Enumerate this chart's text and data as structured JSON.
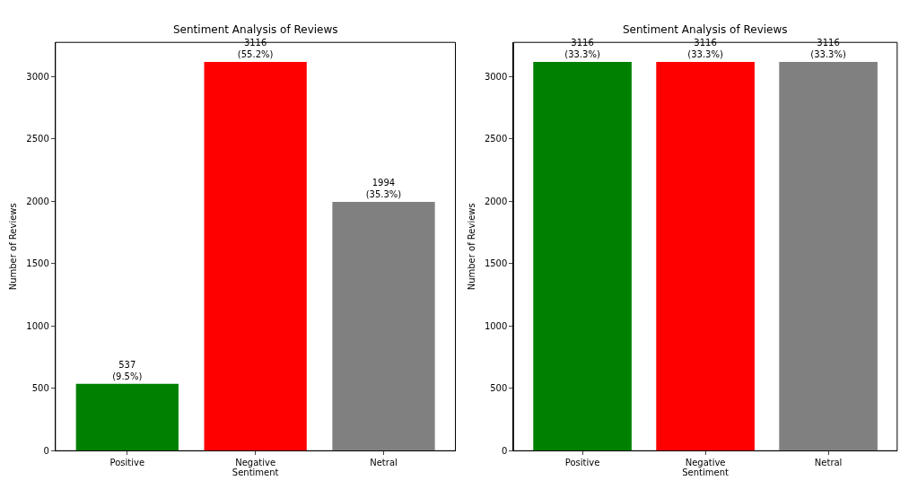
{
  "chart_data": [
    {
      "type": "bar",
      "title": "Sentiment Analysis of Reviews",
      "xlabel": "Sentiment",
      "ylabel": "Number of Reviews",
      "categories": [
        "Positive",
        "Negative",
        "Netral"
      ],
      "values": [
        537,
        3116,
        1994
      ],
      "colors": [
        "#008000",
        "#ff0000",
        "#808080"
      ],
      "value_labels": [
        "537\n(9.5%)",
        "3116\n(55.2%)",
        "1994\n(35.3%)"
      ],
      "ylim": [
        0,
        3272
      ],
      "yticks": [
        0,
        500,
        1000,
        1500,
        2000,
        2500,
        3000
      ]
    },
    {
      "type": "bar",
      "title": "Sentiment Analysis of Reviews",
      "xlabel": "Sentiment",
      "ylabel": "Number of Reviews",
      "categories": [
        "Positive",
        "Negative",
        "Netral"
      ],
      "values": [
        3116,
        3116,
        3116
      ],
      "colors": [
        "#008000",
        "#ff0000",
        "#808080"
      ],
      "value_labels": [
        "3116\n(33.3%)",
        "3116\n(33.3%)",
        "3116\n(33.3%)"
      ],
      "ylim": [
        0,
        3272
      ],
      "yticks": [
        0,
        500,
        1000,
        1500,
        2000,
        2500,
        3000
      ]
    }
  ]
}
